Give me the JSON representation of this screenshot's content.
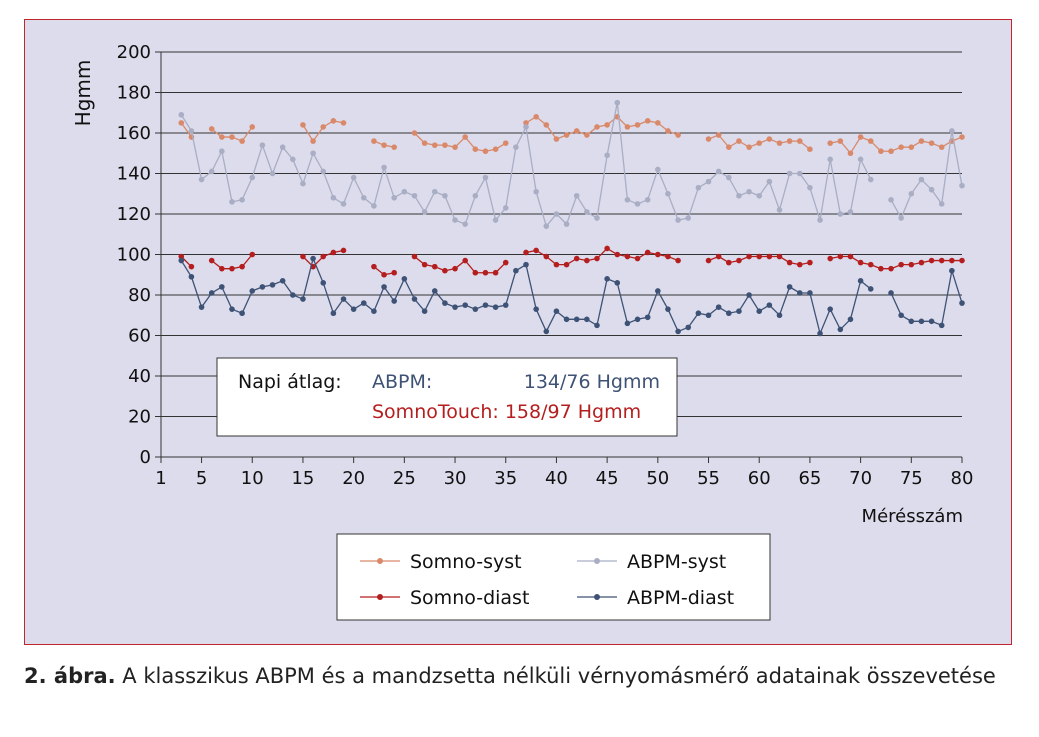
{
  "figure": {
    "caption_label": "2. ábra.",
    "caption_text": " A klasszikus ABPM és a mandzsetta nélküli vérnyomásmérő adatainak összevetése"
  },
  "stats_box": {
    "label": "Napi átlag:",
    "abpm_name": "ABPM:",
    "abpm_value": "134/76 Hgmm",
    "somno_line": "SomnoTouch: 158/97 Hgmm"
  },
  "colors": {
    "somno_syst": "#d9896a",
    "abpm_syst": "#a9aec4",
    "somno_diast": "#b51e1e",
    "abpm_diast": "#3e5275",
    "panel_bg": "#dcdcec",
    "panel_border": "#c0272d"
  },
  "chart_data": {
    "type": "line",
    "xlabel": "Mérésszám",
    "ylabel": "Hgmm",
    "xlim": [
      1,
      80
    ],
    "ylim": [
      0,
      200
    ],
    "x_ticks": [
      1,
      5,
      10,
      15,
      20,
      25,
      30,
      35,
      40,
      45,
      50,
      55,
      60,
      65,
      70,
      75,
      80
    ],
    "y_ticks": [
      0,
      20,
      40,
      60,
      80,
      100,
      120,
      140,
      160,
      180,
      200
    ],
    "grid": "horizontal",
    "legend_position": "bottom",
    "series": [
      {
        "name": "Somno-syst",
        "color": "#d9896a",
        "x": [
          3,
          4,
          6,
          7,
          8,
          9,
          10,
          15,
          16,
          17,
          18,
          19,
          22,
          23,
          24,
          26,
          27,
          28,
          29,
          30,
          31,
          32,
          33,
          34,
          35,
          37,
          38,
          39,
          40,
          41,
          42,
          43,
          44,
          45,
          46,
          47,
          48,
          49,
          50,
          51,
          52,
          55,
          56,
          57,
          58,
          59,
          60,
          61,
          62,
          63,
          64,
          65,
          67,
          68,
          69,
          70,
          71,
          72,
          73,
          74,
          75,
          76,
          77,
          78,
          79,
          80
        ],
        "values": [
          165,
          158,
          162,
          158,
          158,
          156,
          163,
          164,
          156,
          163,
          166,
          165,
          156,
          154,
          153,
          160,
          155,
          154,
          154,
          153,
          158,
          152,
          151,
          152,
          155,
          165,
          168,
          164,
          157,
          159,
          161,
          159,
          163,
          164,
          168,
          163,
          164,
          166,
          165,
          161,
          159,
          157,
          159,
          153,
          156,
          153,
          155,
          157,
          155,
          156,
          156,
          152,
          155,
          156,
          150,
          158,
          156,
          151,
          151,
          153,
          153,
          156,
          155,
          153,
          156,
          158
        ]
      },
      {
        "name": "ABPM-syst",
        "color": "#a9aec4",
        "x": [
          3,
          4,
          5,
          6,
          7,
          8,
          9,
          10,
          11,
          12,
          13,
          14,
          15,
          16,
          17,
          18,
          19,
          20,
          21,
          22,
          23,
          24,
          25,
          26,
          27,
          28,
          29,
          30,
          31,
          32,
          33,
          34,
          35,
          36,
          37,
          38,
          39,
          40,
          41,
          42,
          43,
          44,
          45,
          46,
          47,
          48,
          49,
          50,
          51,
          52,
          53,
          54,
          55,
          56,
          57,
          58,
          59,
          60,
          61,
          62,
          63,
          64,
          65,
          66,
          67,
          68,
          69,
          70,
          71,
          73,
          74,
          75,
          76,
          77,
          78,
          79,
          80
        ],
        "values": [
          169,
          161,
          137,
          141,
          151,
          126,
          127,
          138,
          154,
          140,
          153,
          147,
          135,
          150,
          141,
          128,
          125,
          138,
          128,
          124,
          143,
          128,
          131,
          129,
          121,
          131,
          129,
          117,
          115,
          129,
          138,
          117,
          123,
          153,
          163,
          131,
          114,
          120,
          115,
          129,
          121,
          118,
          149,
          175,
          127,
          125,
          127,
          142,
          130,
          117,
          118,
          133,
          136,
          141,
          138,
          129,
          131,
          129,
          136,
          122,
          140,
          140,
          133,
          117,
          147,
          120,
          121,
          147,
          137,
          127,
          118,
          130,
          137,
          132,
          125,
          161,
          134
        ]
      },
      {
        "name": "Somno-diast",
        "color": "#b51e1e",
        "x": [
          3,
          4,
          6,
          7,
          8,
          9,
          10,
          15,
          16,
          17,
          18,
          19,
          22,
          23,
          24,
          26,
          27,
          28,
          29,
          30,
          31,
          32,
          33,
          34,
          35,
          37,
          38,
          39,
          40,
          41,
          42,
          43,
          44,
          45,
          46,
          47,
          48,
          49,
          50,
          51,
          52,
          55,
          56,
          57,
          58,
          59,
          60,
          61,
          62,
          63,
          64,
          65,
          67,
          68,
          69,
          70,
          71,
          72,
          73,
          74,
          75,
          76,
          77,
          78,
          79,
          80
        ],
        "values": [
          99,
          94,
          97,
          93,
          93,
          94,
          100,
          99,
          94,
          99,
          101,
          102,
          94,
          90,
          91,
          99,
          95,
          94,
          92,
          93,
          97,
          91,
          91,
          91,
          96,
          101,
          102,
          99,
          95,
          95,
          98,
          97,
          98,
          103,
          100,
          99,
          98,
          101,
          100,
          99,
          97,
          97,
          99,
          96,
          97,
          99,
          99,
          99,
          99,
          96,
          95,
          96,
          98,
          99,
          99,
          96,
          95,
          93,
          93,
          95,
          95,
          96,
          97,
          97,
          97,
          97
        ]
      },
      {
        "name": "ABPM-diast",
        "color": "#3e5275",
        "x": [
          3,
          4,
          5,
          6,
          7,
          8,
          9,
          10,
          11,
          12,
          13,
          14,
          15,
          16,
          17,
          18,
          19,
          20,
          21,
          22,
          23,
          24,
          25,
          26,
          27,
          28,
          29,
          30,
          31,
          32,
          33,
          34,
          35,
          36,
          37,
          38,
          39,
          40,
          41,
          42,
          43,
          44,
          45,
          46,
          47,
          48,
          49,
          50,
          51,
          52,
          53,
          54,
          55,
          56,
          57,
          58,
          59,
          60,
          61,
          62,
          63,
          64,
          65,
          66,
          67,
          68,
          69,
          70,
          71,
          73,
          74,
          75,
          76,
          77,
          78,
          79,
          80
        ],
        "values": [
          97,
          89,
          74,
          81,
          84,
          73,
          71,
          82,
          84,
          85,
          87,
          80,
          78,
          98,
          86,
          71,
          78,
          73,
          76,
          72,
          84,
          77,
          88,
          78,
          72,
          82,
          76,
          74,
          75,
          73,
          75,
          74,
          75,
          92,
          95,
          73,
          62,
          72,
          68,
          68,
          68,
          65,
          88,
          86,
          66,
          68,
          69,
          82,
          73,
          62,
          64,
          71,
          70,
          74,
          71,
          72,
          80,
          72,
          75,
          70,
          84,
          81,
          81,
          61,
          73,
          63,
          68,
          87,
          83,
          81,
          70,
          67,
          67,
          67,
          65,
          92,
          76
        ]
      }
    ]
  }
}
